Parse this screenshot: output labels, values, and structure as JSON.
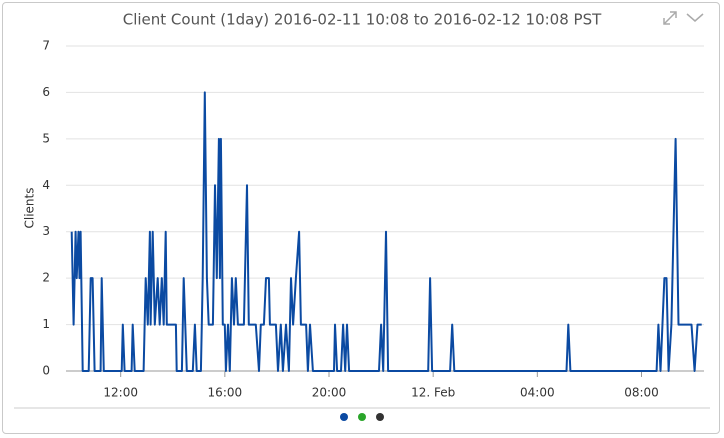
{
  "chart_data": {
    "type": "line",
    "title": "Client Count (1day) 2016-02-11 10:08 to 2016-02-12 10:08 PST",
    "y_label": "Clients",
    "color": "#0b4aa2",
    "grid": true,
    "xlim": [
      9.9,
      34.4
    ],
    "ylim": [
      0,
      7
    ],
    "yticks": [
      0,
      1,
      2,
      3,
      4,
      5,
      6,
      7
    ],
    "xticks": [
      {
        "value": 12,
        "label": "12:00"
      },
      {
        "value": 16,
        "label": "16:00"
      },
      {
        "value": 20,
        "label": "20:00"
      },
      {
        "value": 24,
        "label": "12. Feb"
      },
      {
        "value": 28,
        "label": "04:00"
      },
      {
        "value": 32,
        "label": "08:00"
      }
    ],
    "x": [
      10.12,
      10.19,
      10.27,
      10.31,
      10.38,
      10.42,
      10.46,
      10.54,
      10.77,
      10.85,
      10.92,
      11.0,
      11.23,
      11.27,
      11.35,
      12.04,
      12.08,
      12.15,
      12.42,
      12.46,
      12.54,
      12.88,
      12.96,
      13.04,
      13.12,
      13.15,
      13.23,
      13.31,
      13.42,
      13.5,
      13.58,
      13.65,
      13.73,
      13.77,
      14.12,
      14.15,
      14.35,
      14.42,
      14.54,
      14.77,
      14.85,
      14.92,
      15.08,
      15.15,
      15.23,
      15.31,
      15.38,
      15.54,
      15.62,
      15.69,
      15.77,
      15.81,
      15.85,
      15.92,
      16.0,
      16.04,
      16.12,
      16.19,
      16.27,
      16.35,
      16.42,
      16.5,
      16.62,
      16.73,
      16.85,
      16.92,
      17.08,
      17.19,
      17.31,
      17.38,
      17.5,
      17.58,
      17.69,
      17.73,
      17.96,
      18.04,
      18.15,
      18.23,
      18.35,
      18.46,
      18.54,
      18.62,
      18.73,
      18.85,
      18.92,
      19.12,
      19.19,
      19.27,
      19.38,
      20.19,
      20.23,
      20.31,
      20.46,
      20.54,
      20.62,
      20.69,
      20.77,
      21.92,
      22.0,
      22.08,
      22.19,
      22.27,
      23.81,
      23.88,
      23.96,
      24.65,
      24.73,
      24.81,
      29.12,
      29.19,
      29.27,
      32.58,
      32.65,
      32.73,
      32.88,
      32.96,
      33.04,
      33.15,
      33.31,
      33.42,
      33.92,
      34.04,
      34.15,
      34.31
    ],
    "values": [
      3,
      1,
      3,
      2,
      3,
      2,
      3,
      0,
      0,
      2,
      2,
      0,
      0,
      2,
      0,
      0,
      1,
      0,
      0,
      1,
      0,
      0,
      2,
      1,
      3,
      1,
      3,
      1,
      2,
      1,
      2,
      1,
      3,
      1,
      1,
      0,
      0,
      2,
      0,
      0,
      1,
      0,
      0,
      2,
      6,
      2,
      1,
      1,
      4,
      2,
      5,
      2,
      5,
      1,
      1,
      0,
      1,
      0,
      2,
      1,
      2,
      1,
      1,
      1,
      4,
      1,
      1,
      1,
      0,
      1,
      1,
      2,
      2,
      1,
      1,
      0,
      1,
      0,
      1,
      0,
      2,
      1,
      2,
      3,
      1,
      1,
      0,
      1,
      0,
      0,
      1,
      0,
      0,
      1,
      0,
      1,
      0,
      0,
      1,
      0,
      3,
      0,
      0,
      2,
      0,
      0,
      1,
      0,
      0,
      1,
      0,
      0,
      1,
      0,
      2,
      2,
      0,
      1,
      5,
      1,
      1,
      0,
      1,
      1
    ]
  }
}
